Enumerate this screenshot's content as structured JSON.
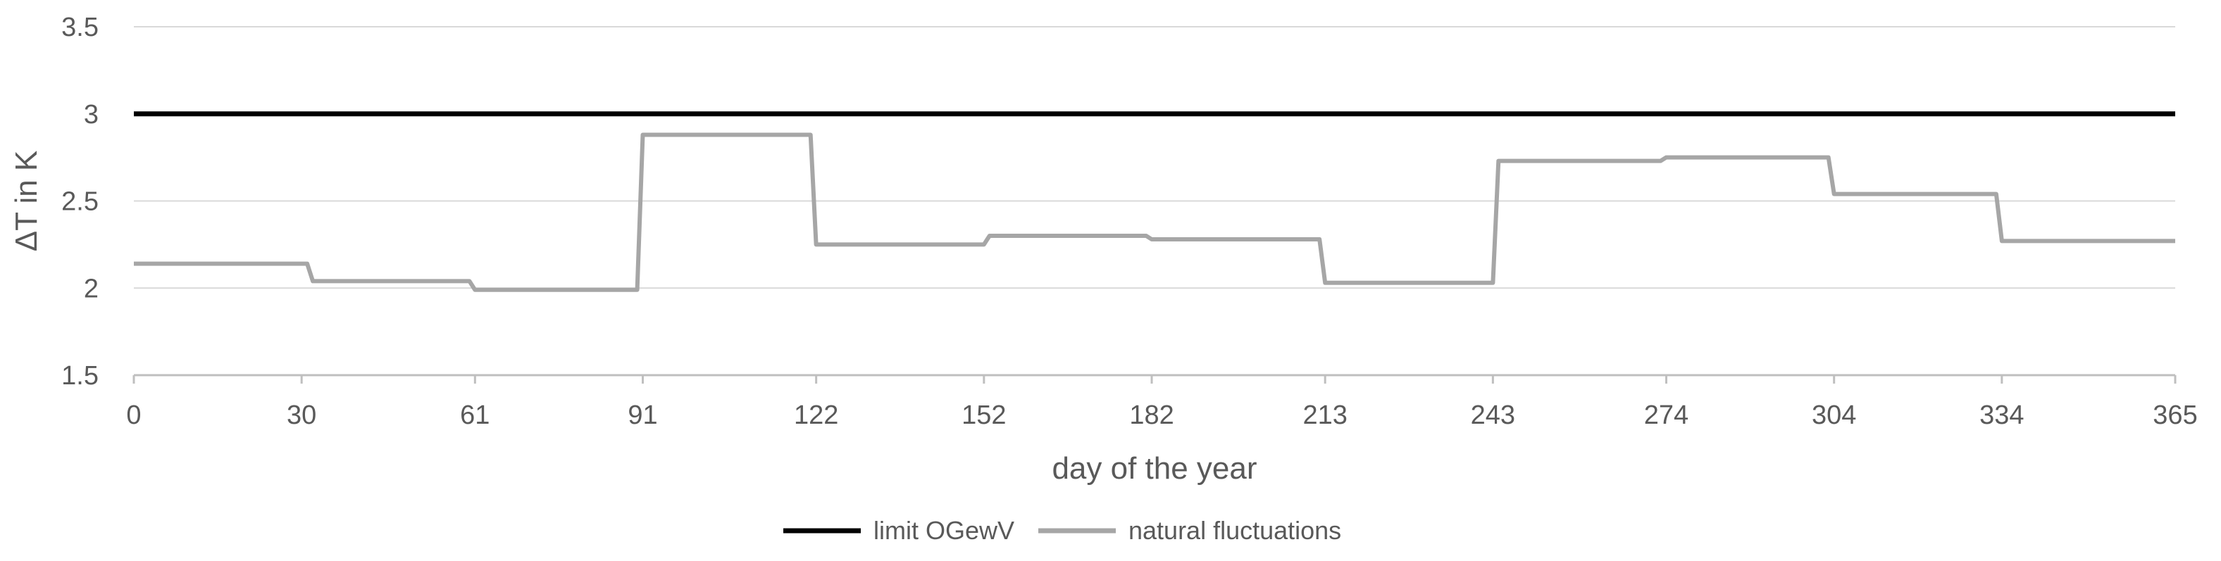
{
  "chart_data": {
    "type": "line",
    "xlabel": "day of the year",
    "ylabel": "ΔT in K",
    "xlim": [
      0,
      365
    ],
    "ylim": [
      1.5,
      3.5
    ],
    "x_ticks": [
      0,
      30,
      61,
      91,
      122,
      152,
      182,
      213,
      243,
      274,
      304,
      334,
      365
    ],
    "y_ticks": [
      1.5,
      2,
      2.5,
      3,
      3.5
    ],
    "x_tick_labels": [
      "0",
      "30",
      "61",
      "91",
      "122",
      "152",
      "182",
      "213",
      "243",
      "274",
      "304",
      "334",
      "365"
    ],
    "y_tick_labels": [
      "1.5",
      "2",
      "2.5",
      "3",
      "3.5"
    ],
    "grid": "horizontal",
    "legend_position": "bottom",
    "series": [
      {
        "name": "limit OGewV",
        "color": "#000000",
        "x": [
          0,
          365
        ],
        "y": [
          3.0,
          3.0
        ]
      },
      {
        "name": "natural fluctuations",
        "color": "#a6a6a6",
        "x": [
          0,
          31,
          32,
          60,
          61,
          90,
          91,
          121,
          122,
          152,
          153,
          181,
          182,
          212,
          213,
          243,
          244,
          273,
          274,
          303,
          304,
          333,
          334,
          365
        ],
        "y": [
          2.14,
          2.14,
          2.04,
          2.04,
          1.99,
          1.99,
          2.88,
          2.88,
          2.25,
          2.25,
          2.3,
          2.3,
          2.28,
          2.28,
          2.03,
          2.03,
          2.73,
          2.73,
          2.75,
          2.75,
          2.54,
          2.54,
          2.27,
          2.27
        ]
      }
    ]
  }
}
